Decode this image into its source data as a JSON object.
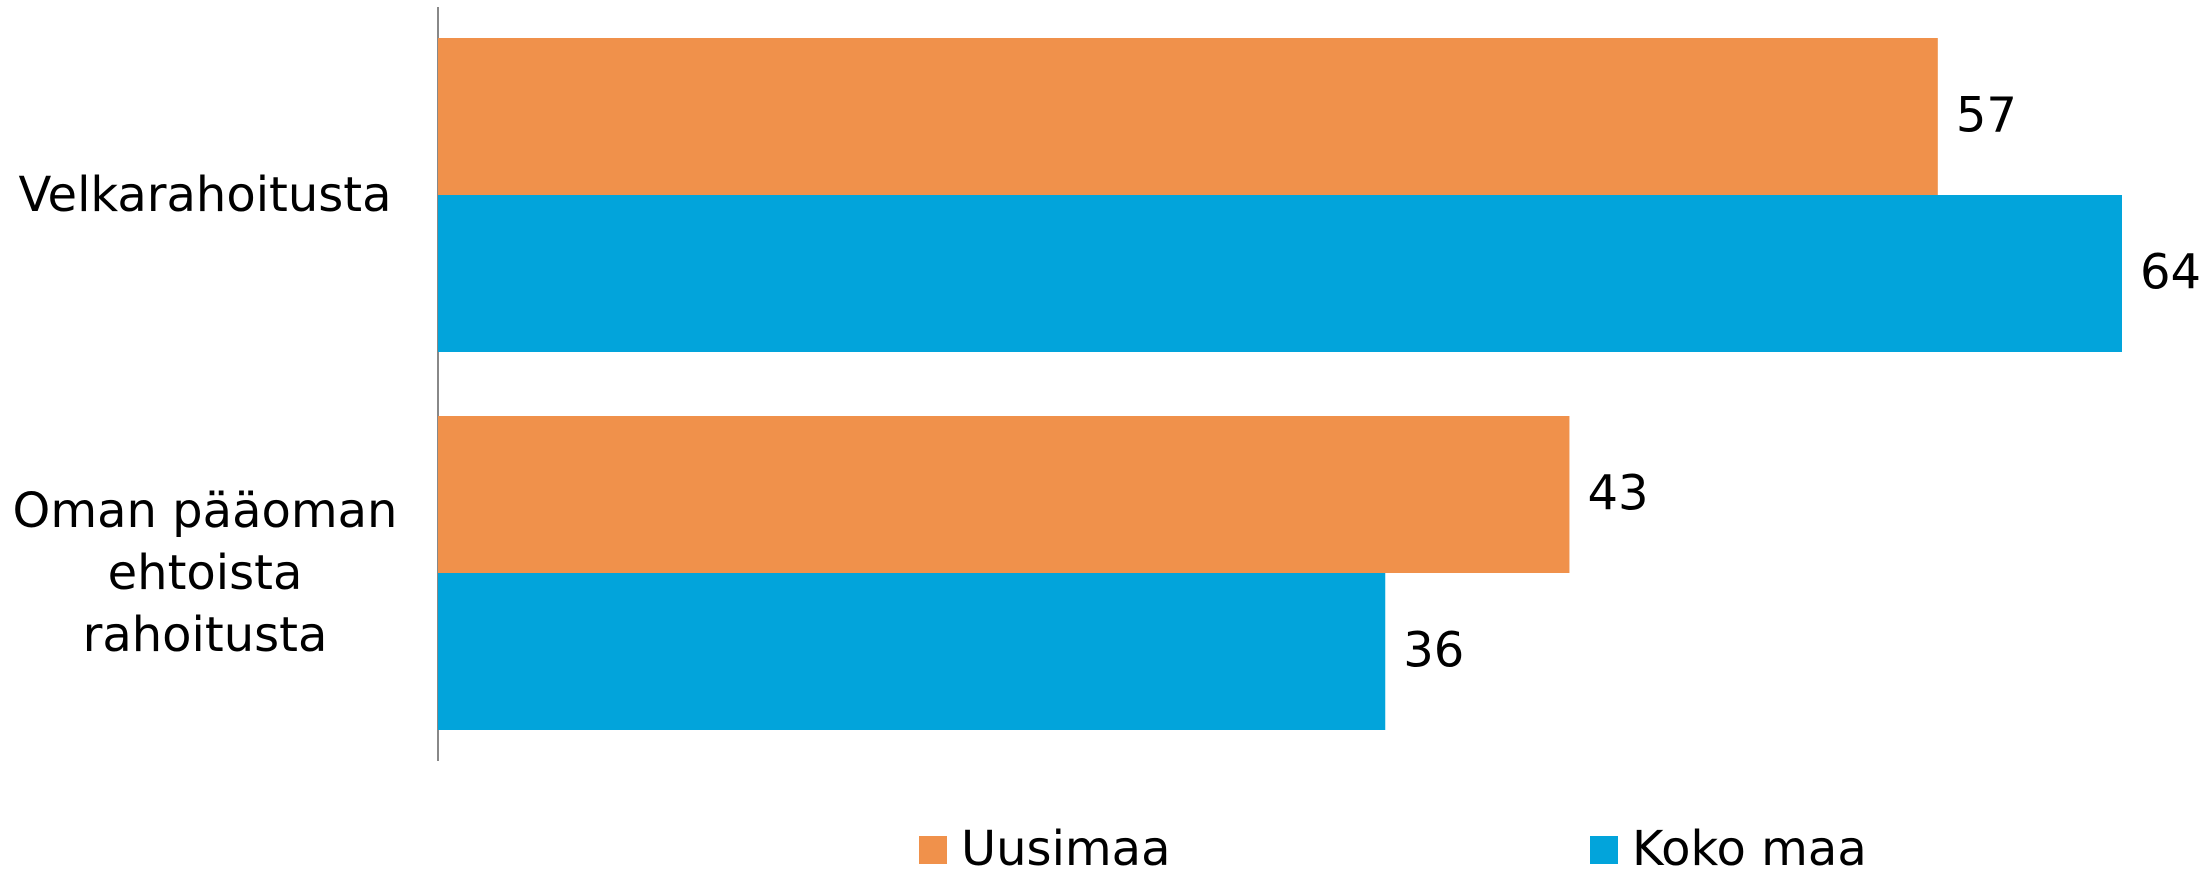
{
  "chart_data": {
    "type": "hbar",
    "categories": [
      "Velkarahoitusta",
      "Oman pääoman ehtoista rahoitusta"
    ],
    "series": [
      {
        "name": "Uusimaa",
        "color": "#f0914b",
        "values": [
          57,
          43
        ]
      },
      {
        "name": "Koko maa",
        "color": "#02a4db",
        "values": [
          64,
          36
        ]
      }
    ]
  }
}
